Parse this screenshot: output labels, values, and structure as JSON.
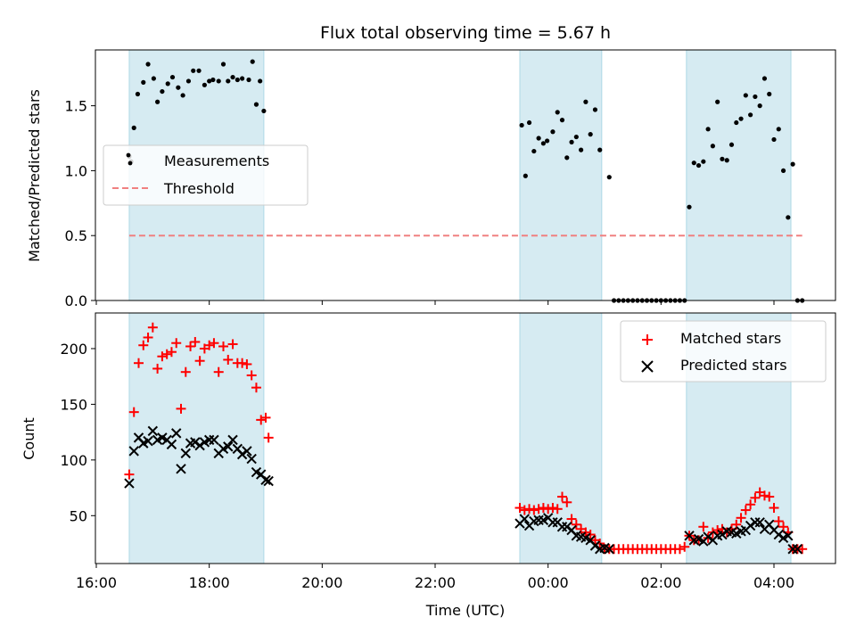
{
  "chart_data": [
    {
      "type": "scatter",
      "title": "Flux total observing time = 5.67 h",
      "xlabel": "",
      "ylabel": "Matched/Predicted stars",
      "xlim": [
        "16:00",
        "05:10"
      ],
      "ylim": [
        0,
        1.93
      ],
      "yticks": [
        "0.0",
        "0.5",
        "1.0",
        "1.5"
      ],
      "legend_position": "center-left",
      "shaded_intervals": [
        [
          "16:35",
          "18:58"
        ],
        [
          "23:30",
          "00:57"
        ],
        [
          "02:27",
          "04:18"
        ]
      ],
      "threshold": {
        "name": "Threshold",
        "value": 0.5,
        "color": "#f08080"
      },
      "series": [
        {
          "name": "Measurements",
          "color": "#000000",
          "points": [
            [
              "16:35",
              1.11
            ],
            [
              "16:37",
              1.07
            ],
            [
              "16:40",
              1.33
            ],
            [
              "16:44",
              1.59
            ],
            [
              "16:50",
              1.68
            ],
            [
              "16:55",
              1.82
            ],
            [
              "17:01",
              1.71
            ],
            [
              "17:05",
              1.53
            ],
            [
              "17:10",
              1.61
            ],
            [
              "17:16",
              1.67
            ],
            [
              "17:21",
              1.72
            ],
            [
              "17:27",
              1.64
            ],
            [
              "17:32",
              1.58
            ],
            [
              "17:38",
              1.69
            ],
            [
              "17:43",
              1.77
            ],
            [
              "17:49",
              1.77
            ],
            [
              "17:55",
              1.66
            ],
            [
              "18:00",
              1.69
            ],
            [
              "18:04",
              1.7
            ],
            [
              "18:10",
              1.69
            ],
            [
              "18:15",
              1.82
            ],
            [
              "18:20",
              1.69
            ],
            [
              "18:25",
              1.72
            ],
            [
              "18:30",
              1.7
            ],
            [
              "18:35",
              1.71
            ],
            [
              "18:42",
              1.7
            ],
            [
              "18:46",
              1.84
            ],
            [
              "18:50",
              1.51
            ],
            [
              "18:54",
              1.69
            ],
            [
              "18:58",
              1.46
            ],
            [
              "23:32",
              1.35
            ],
            [
              "23:36",
              0.96
            ],
            [
              "23:40",
              1.37
            ],
            [
              "23:45",
              1.15
            ],
            [
              "23:50",
              1.25
            ],
            [
              "23:55",
              1.21
            ],
            [
              "23:59",
              1.23
            ],
            [
              "00:05",
              1.3
            ],
            [
              "00:10",
              1.45
            ],
            [
              "00:15",
              1.39
            ],
            [
              "00:20",
              1.1
            ],
            [
              "00:25",
              1.22
            ],
            [
              "00:30",
              1.26
            ],
            [
              "00:35",
              1.16
            ],
            [
              "00:40",
              1.53
            ],
            [
              "00:45",
              1.28
            ],
            [
              "00:50",
              1.47
            ],
            [
              "00:55",
              1.16
            ],
            [
              "01:05",
              0.95
            ],
            [
              "01:10",
              0.0
            ],
            [
              "01:15",
              0.0
            ],
            [
              "01:20",
              0.0
            ],
            [
              "01:25",
              0.0
            ],
            [
              "01:30",
              0.0
            ],
            [
              "01:35",
              0.0
            ],
            [
              "01:40",
              0.0
            ],
            [
              "01:45",
              0.0
            ],
            [
              "01:50",
              0.0
            ],
            [
              "01:55",
              0.0
            ],
            [
              "02:00",
              0.0
            ],
            [
              "02:05",
              0.0
            ],
            [
              "02:10",
              0.0
            ],
            [
              "02:15",
              0.0
            ],
            [
              "02:20",
              0.0
            ],
            [
              "02:25",
              0.0
            ],
            [
              "02:30",
              0.72
            ],
            [
              "02:35",
              1.06
            ],
            [
              "02:40",
              1.04
            ],
            [
              "02:45",
              1.07
            ],
            [
              "02:50",
              1.32
            ],
            [
              "02:55",
              1.19
            ],
            [
              "03:00",
              1.53
            ],
            [
              "03:05",
              1.09
            ],
            [
              "03:10",
              1.08
            ],
            [
              "03:15",
              1.2
            ],
            [
              "03:20",
              1.37
            ],
            [
              "03:25",
              1.4
            ],
            [
              "03:30",
              1.58
            ],
            [
              "03:35",
              1.43
            ],
            [
              "03:40",
              1.57
            ],
            [
              "03:45",
              1.5
            ],
            [
              "03:50",
              1.71
            ],
            [
              "03:55",
              1.59
            ],
            [
              "04:00",
              1.24
            ],
            [
              "04:05",
              1.32
            ],
            [
              "04:10",
              1.0
            ],
            [
              "04:15",
              0.64
            ],
            [
              "04:20",
              1.05
            ],
            [
              "04:25",
              0.0
            ],
            [
              "04:30",
              0.0
            ]
          ]
        }
      ]
    },
    {
      "type": "scatter",
      "title": "",
      "xlabel": "Time (UTC)",
      "ylabel": "Count",
      "xlim": [
        "16:00",
        "05:10"
      ],
      "ylim": [
        7,
        232
      ],
      "yticks": [
        "50",
        "100",
        "150",
        "200"
      ],
      "xticks": [
        "16:00",
        "18:00",
        "20:00",
        "22:00",
        "00:00",
        "02:00",
        "04:00"
      ],
      "legend_position": "top-right",
      "shaded_intervals": [
        [
          "16:35",
          "18:58"
        ],
        [
          "23:30",
          "00:57"
        ],
        [
          "02:27",
          "04:18"
        ]
      ],
      "series": [
        {
          "name": "Matched stars",
          "marker": "+",
          "color": "#ff0000",
          "points": [
            [
              "16:35",
              87
            ],
            [
              "16:40",
              143
            ],
            [
              "16:45",
              187
            ],
            [
              "16:50",
              203
            ],
            [
              "16:55",
              210
            ],
            [
              "17:00",
              219
            ],
            [
              "17:05",
              182
            ],
            [
              "17:10",
              193
            ],
            [
              "17:15",
              195
            ],
            [
              "17:20",
              197
            ],
            [
              "17:25",
              205
            ],
            [
              "17:30",
              146
            ],
            [
              "17:35",
              179
            ],
            [
              "17:40",
              202
            ],
            [
              "17:45",
              206
            ],
            [
              "17:50",
              189
            ],
            [
              "17:55",
              200
            ],
            [
              "18:00",
              203
            ],
            [
              "18:05",
              205
            ],
            [
              "18:10",
              179
            ],
            [
              "18:15",
              202
            ],
            [
              "18:20",
              190
            ],
            [
              "18:25",
              204
            ],
            [
              "18:30",
              187
            ],
            [
              "18:35",
              187
            ],
            [
              "18:40",
              186
            ],
            [
              "18:45",
              176
            ],
            [
              "18:50",
              165
            ],
            [
              "18:55",
              136
            ],
            [
              "19:00",
              138
            ],
            [
              "19:03",
              120
            ],
            [
              "23:30",
              57
            ],
            [
              "23:35",
              55
            ],
            [
              "23:40",
              56
            ],
            [
              "23:45",
              55
            ],
            [
              "23:50",
              56
            ],
            [
              "23:55",
              57
            ],
            [
              "00:00",
              56
            ],
            [
              "00:05",
              57
            ],
            [
              "00:10",
              56
            ],
            [
              "00:15",
              67
            ],
            [
              "00:20",
              62
            ],
            [
              "00:25",
              47
            ],
            [
              "00:30",
              42
            ],
            [
              "00:35",
              38
            ],
            [
              "00:40",
              35
            ],
            [
              "00:45",
              33
            ],
            [
              "00:50",
              28
            ],
            [
              "00:55",
              25
            ],
            [
              "01:00",
              20
            ],
            [
              "01:05",
              20
            ],
            [
              "01:10",
              20
            ],
            [
              "01:15",
              20
            ],
            [
              "01:20",
              20
            ],
            [
              "01:25",
              20
            ],
            [
              "01:30",
              20
            ],
            [
              "01:35",
              20
            ],
            [
              "01:40",
              20
            ],
            [
              "01:45",
              20
            ],
            [
              "01:50",
              20
            ],
            [
              "01:55",
              20
            ],
            [
              "02:00",
              20
            ],
            [
              "02:05",
              20
            ],
            [
              "02:10",
              20
            ],
            [
              "02:15",
              20
            ],
            [
              "02:20",
              20
            ],
            [
              "02:25",
              22
            ],
            [
              "02:30",
              32
            ],
            [
              "02:35",
              28
            ],
            [
              "02:40",
              28
            ],
            [
              "02:45",
              40
            ],
            [
              "02:50",
              30
            ],
            [
              "02:55",
              35
            ],
            [
              "03:00",
              37
            ],
            [
              "03:05",
              38
            ],
            [
              "03:10",
              35
            ],
            [
              "03:15",
              38
            ],
            [
              "03:20",
              42
            ],
            [
              "03:25",
              48
            ],
            [
              "03:30",
              55
            ],
            [
              "03:35",
              60
            ],
            [
              "03:40",
              66
            ],
            [
              "03:45",
              71
            ],
            [
              "03:50",
              68
            ],
            [
              "03:55",
              67
            ],
            [
              "04:00",
              57
            ],
            [
              "04:05",
              45
            ],
            [
              "04:10",
              40
            ],
            [
              "04:15",
              35
            ],
            [
              "04:20",
              20
            ],
            [
              "04:25",
              20
            ],
            [
              "04:30",
              20
            ]
          ]
        },
        {
          "name": "Predicted stars",
          "marker": "x",
          "color": "#000000",
          "points": [
            [
              "16:35",
              79
            ],
            [
              "16:40",
              108
            ],
            [
              "16:45",
              120
            ],
            [
              "16:50",
              115
            ],
            [
              "16:55",
              117
            ],
            [
              "17:00",
              126
            ],
            [
              "17:05",
              118
            ],
            [
              "17:10",
              120
            ],
            [
              "17:15",
              118
            ],
            [
              "17:20",
              114
            ],
            [
              "17:25",
              124
            ],
            [
              "17:30",
              92
            ],
            [
              "17:35",
              106
            ],
            [
              "17:40",
              115
            ],
            [
              "17:45",
              116
            ],
            [
              "17:50",
              113
            ],
            [
              "17:55",
              116
            ],
            [
              "18:00",
              118
            ],
            [
              "18:05",
              118
            ],
            [
              "18:10",
              106
            ],
            [
              "18:15",
              110
            ],
            [
              "18:20",
              112
            ],
            [
              "18:25",
              118
            ],
            [
              "18:30",
              110
            ],
            [
              "18:35",
              105
            ],
            [
              "18:40",
              108
            ],
            [
              "18:45",
              101
            ],
            [
              "18:50",
              89
            ],
            [
              "18:55",
              87
            ],
            [
              "19:00",
              82
            ],
            [
              "19:03",
              81
            ],
            [
              "23:30",
              43
            ],
            [
              "23:35",
              47
            ],
            [
              "23:40",
              41
            ],
            [
              "23:45",
              45
            ],
            [
              "23:50",
              46
            ],
            [
              "23:55",
              46
            ],
            [
              "00:00",
              48
            ],
            [
              "00:05",
              44
            ],
            [
              "00:10",
              44
            ],
            [
              "00:15",
              40
            ],
            [
              "00:20",
              40
            ],
            [
              "00:25",
              37
            ],
            [
              "00:30",
              32
            ],
            [
              "00:35",
              31
            ],
            [
              "00:40",
              30
            ],
            [
              "00:45",
              28
            ],
            [
              "00:50",
              23
            ],
            [
              "00:55",
              20
            ],
            [
              "01:00",
              21
            ],
            [
              "01:05",
              20
            ],
            [
              "02:30",
              32
            ],
            [
              "02:35",
              28
            ],
            [
              "02:40",
              29
            ],
            [
              "02:45",
              27
            ],
            [
              "02:50",
              31
            ],
            [
              "02:55",
              28
            ],
            [
              "03:00",
              32
            ],
            [
              "03:05",
              33
            ],
            [
              "03:10",
              36
            ],
            [
              "03:15",
              35
            ],
            [
              "03:20",
              34
            ],
            [
              "03:25",
              36
            ],
            [
              "03:30",
              37
            ],
            [
              "03:35",
              41
            ],
            [
              "03:40",
              44
            ],
            [
              "03:45",
              44
            ],
            [
              "03:50",
              38
            ],
            [
              "03:55",
              42
            ],
            [
              "04:00",
              37
            ],
            [
              "04:05",
              33
            ],
            [
              "04:10",
              30
            ],
            [
              "04:15",
              32
            ],
            [
              "04:20",
              20
            ],
            [
              "04:25",
              20
            ]
          ]
        }
      ]
    }
  ],
  "colors": {
    "shade": "#add8e6",
    "shade_opacity": 0.5
  }
}
